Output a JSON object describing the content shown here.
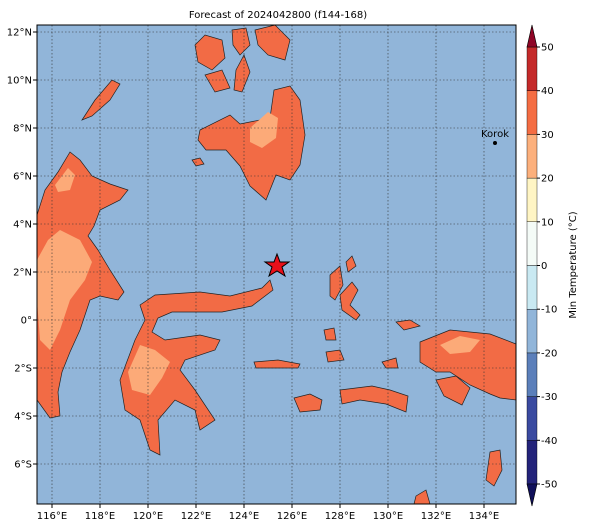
{
  "map": {
    "title": "Forecast of 2024042800 (f144-168)",
    "lon_ticks": [
      "116°E",
      "118°E",
      "120°E",
      "122°E",
      "124°E",
      "126°E",
      "128°E",
      "130°E",
      "132°E",
      "134°E"
    ],
    "lat_ticks": [
      "12°N",
      "10°N",
      "8°N",
      "6°N",
      "4°N",
      "2°N",
      "0°",
      "2°S",
      "4°S",
      "6°S"
    ],
    "marker": {
      "label": "Korok"
    },
    "colorbar": {
      "label": "Min Temperature (°C)",
      "ticks": [
        50,
        40,
        30,
        20,
        10,
        0,
        -10,
        -20,
        -30,
        -40,
        -50
      ],
      "colors": [
        "#23237a",
        "#3a4aa0",
        "#5b7fba",
        "#91b5d9",
        "#c9e9f2",
        "#f4fbf7",
        "#fff5c4",
        "#fcb07c",
        "#f46d43",
        "#c42a2a"
      ],
      "under_color": "#10105a",
      "over_color": "#8e0526"
    }
  }
}
